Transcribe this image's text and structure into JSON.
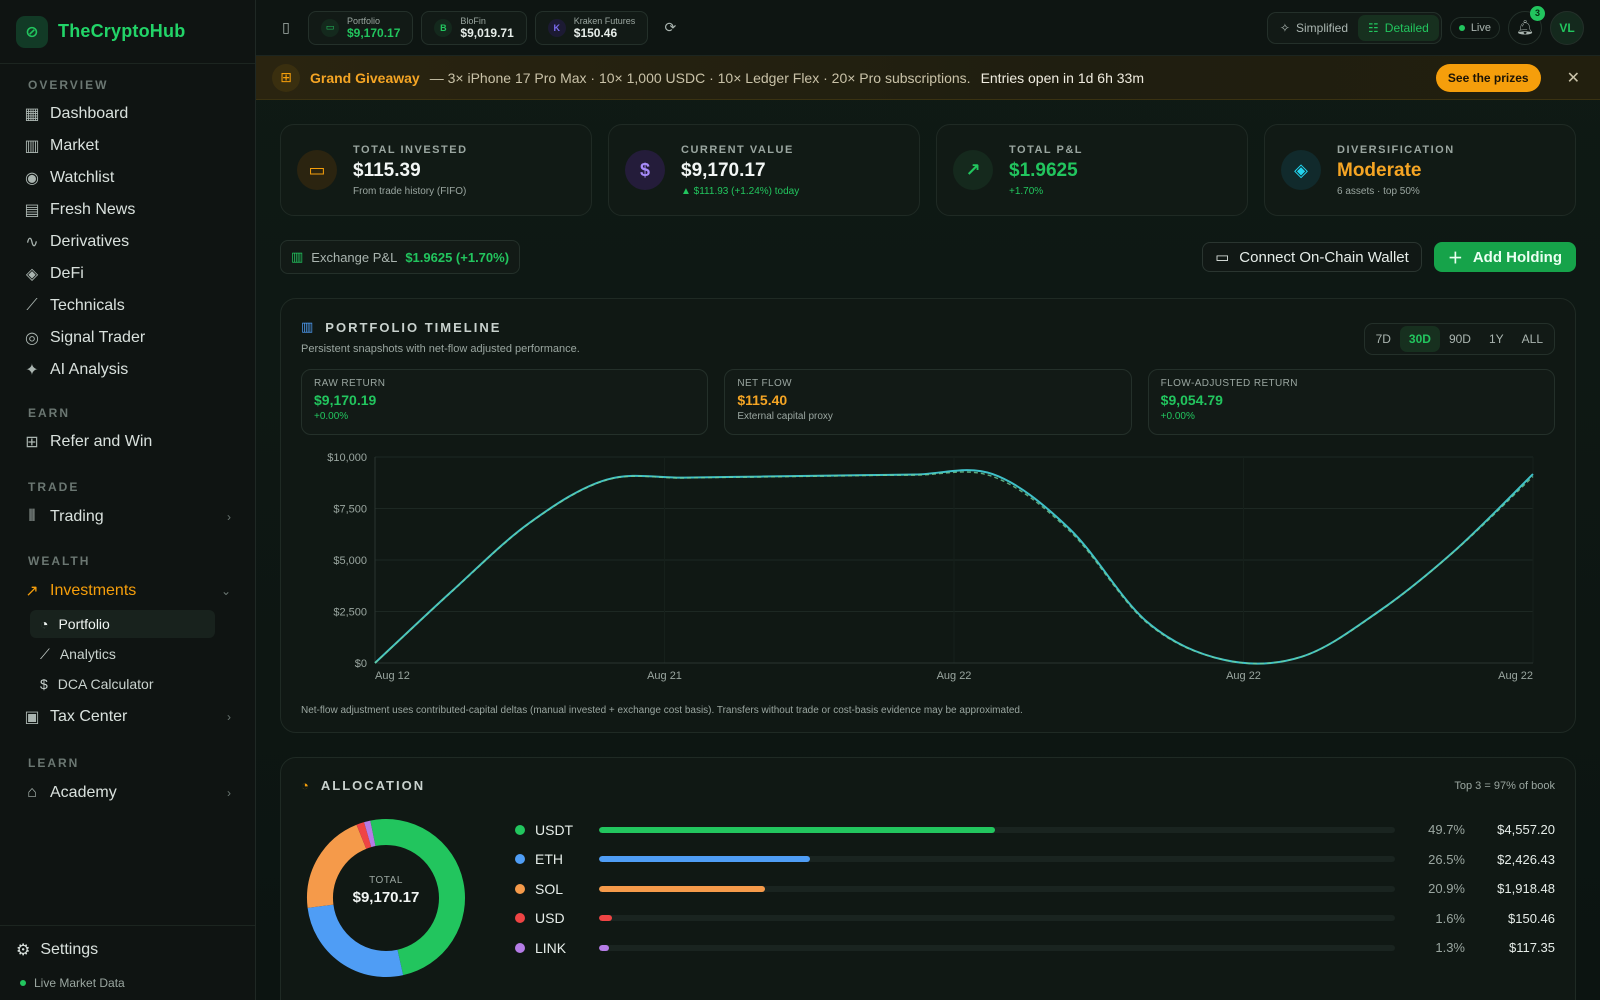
{
  "brand": {
    "name": "TheCryptoHub"
  },
  "sidebar": {
    "sections": [
      {
        "title": "OVERVIEW",
        "items": [
          "Dashboard",
          "Market",
          "Watchlist",
          "Fresh News",
          "Derivatives",
          "DeFi",
          "Technicals",
          "Signal Trader",
          "AI Analysis"
        ]
      },
      {
        "title": "EARN",
        "items": [
          "Refer and Win"
        ]
      },
      {
        "title": "TRADE",
        "items": [
          "Trading"
        ]
      },
      {
        "title": "WEALTH",
        "items": [
          "Investments"
        ]
      },
      {
        "title": "LEARN",
        "items": [
          "Academy"
        ]
      }
    ],
    "investments_sub": [
      "Portfolio",
      "Analytics",
      "DCA Calculator"
    ],
    "tax_center": "Tax Center",
    "settings": "Settings",
    "live_market": "Live Market Data"
  },
  "topbar": {
    "chips": [
      {
        "label": "Portfolio",
        "value": "$9,170.17",
        "icon": "B"
      },
      {
        "label": "BloFin",
        "value": "$9,019.71",
        "icon": "B"
      },
      {
        "label": "Kraken Futures",
        "value": "$150.46",
        "icon": "K"
      }
    ],
    "view_simplified": "Simplified",
    "view_detailed": "Detailed",
    "live": "Live",
    "notifications": "3",
    "avatar": "VL"
  },
  "banner": {
    "title": "Grand Giveaway",
    "text": "— 3× iPhone 17 Pro Max · 10× 1,000 USDC · 10× Ledger Flex · 20× Pro subscriptions.",
    "emphasis": "Entries open in 1d 6h 33m",
    "cta": "See the prizes"
  },
  "stats": [
    {
      "label": "TOTAL INVESTED",
      "value": "$115.39",
      "sub": "From trade history (FIFO)"
    },
    {
      "label": "CURRENT VALUE",
      "value": "$9,170.17",
      "sub": "▲ $111.93 (+1.24%) today"
    },
    {
      "label": "TOTAL P&L",
      "value": "$1.9625",
      "sub": "+1.70%"
    },
    {
      "label": "DIVERSIFICATION",
      "value": "Moderate",
      "sub": "6 assets · top 50%"
    }
  ],
  "actions": {
    "exchange_pnl_label": "Exchange P&L",
    "exchange_pnl_value": "$1.9625 (+1.70%)",
    "connect_wallet": "Connect On-Chain Wallet",
    "add_holding": "Add Holding"
  },
  "timeline": {
    "title": "PORTFOLIO TIMELINE",
    "subtitle": "Persistent snapshots with net-flow adjusted performance.",
    "ranges": [
      "7D",
      "30D",
      "90D",
      "1Y",
      "ALL"
    ],
    "active_range": "30D",
    "metrics": [
      {
        "label": "RAW RETURN",
        "value": "$9,170.19",
        "sub": "+0.00%"
      },
      {
        "label": "NET FLOW",
        "value": "$115.40",
        "sub": "External capital proxy"
      },
      {
        "label": "FLOW-ADJUSTED RETURN",
        "value": "$9,054.79",
        "sub": "+0.00%"
      }
    ],
    "note": "Net-flow adjustment uses contributed-capital deltas (manual invested + exchange cost basis). Transfers without trade or cost-basis evidence may be approximated."
  },
  "chart_data": {
    "type": "line",
    "x_ticks": [
      "Aug 12",
      "Aug 21",
      "Aug 22",
      "Aug 22",
      "Aug 22"
    ],
    "y_ticks": [
      "$0",
      "$2,500",
      "$5,000",
      "$7,500",
      "$10,000"
    ],
    "ylim": [
      0,
      10000
    ],
    "series": [
      {
        "values": [
          0,
          3500,
          6800,
          8900,
          9000,
          9050,
          9100,
          9150,
          9170,
          6500,
          2000,
          150,
          300,
          2500,
          5500,
          9170
        ]
      },
      {
        "values": [
          0,
          3480,
          6780,
          8880,
          8980,
          9030,
          9080,
          9120,
          9054,
          6400,
          1950,
          150,
          300,
          2480,
          5480,
          9054
        ]
      }
    ],
    "colors": [
      "#3fc1c9",
      "#6fcf97"
    ],
    "grid": true
  },
  "allocation": {
    "title": "ALLOCATION",
    "top_note": "Top 3 = 97% of book",
    "total_label": "TOTAL",
    "total_value": "$9,170.17",
    "assets": [
      {
        "name": "USDT",
        "pct": 49.7,
        "pct_text": "49.7%",
        "amount": "$4,557.20",
        "color": "#22c55e"
      },
      {
        "name": "ETH",
        "pct": 26.5,
        "pct_text": "26.5%",
        "amount": "$2,426.43",
        "color": "#4f9df5"
      },
      {
        "name": "SOL",
        "pct": 20.9,
        "pct_text": "20.9%",
        "amount": "$1,918.48",
        "color": "#f59a4a"
      },
      {
        "name": "USD",
        "pct": 1.6,
        "pct_text": "1.6%",
        "amount": "$150.46",
        "color": "#ef4444"
      },
      {
        "name": "LINK",
        "pct": 1.3,
        "pct_text": "1.3%",
        "amount": "$117.35",
        "color": "#b57ce6"
      }
    ]
  }
}
